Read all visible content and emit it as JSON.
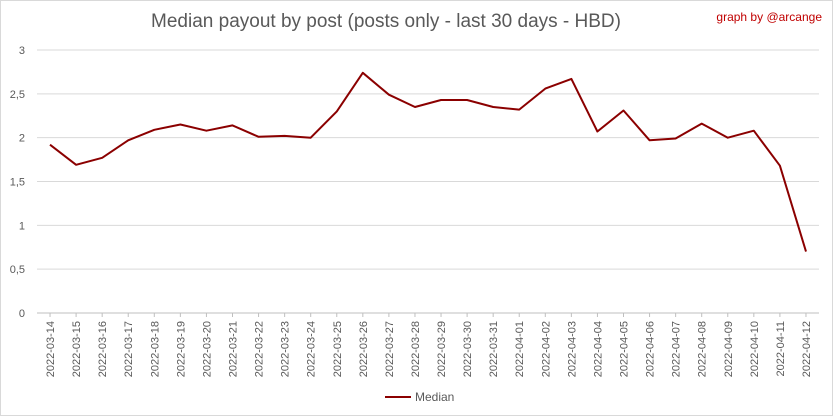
{
  "chart_data": {
    "type": "line",
    "title": "Median payout by post (posts only - last 30 days - HBD)",
    "credit": "graph by @arcange",
    "xlabel": "",
    "ylabel": "",
    "ylim": [
      0,
      3
    ],
    "yticks": [
      "0",
      "0,5",
      "1",
      "1,5",
      "2",
      "2,5",
      "3"
    ],
    "grid": true,
    "legend_position": "bottom",
    "categories": [
      "2022-03-14",
      "2022-03-15",
      "2022-03-16",
      "2022-03-17",
      "2022-03-18",
      "2022-03-19",
      "2022-03-20",
      "2022-03-21",
      "2022-03-22",
      "2022-03-23",
      "2022-03-24",
      "2022-03-25",
      "2022-03-26",
      "2022-03-27",
      "2022-03-28",
      "2022-03-29",
      "2022-03-30",
      "2022-03-31",
      "2022-04-01",
      "2022-04-02",
      "2022-04-03",
      "2022-04-04",
      "2022-04-05",
      "2022-04-06",
      "2022-04-07",
      "2022-04-08",
      "2022-04-09",
      "2022-04-10",
      "2022-04-11",
      "2022-04-12"
    ],
    "series": [
      {
        "name": "Median",
        "color": "#8b0000",
        "values": [
          1.92,
          1.69,
          1.77,
          1.97,
          2.09,
          2.15,
          2.08,
          2.14,
          2.01,
          2.02,
          2.0,
          2.3,
          2.74,
          2.49,
          2.35,
          2.43,
          2.43,
          2.35,
          2.32,
          2.56,
          2.67,
          2.07,
          2.31,
          1.97,
          1.99,
          2.16,
          2.0,
          2.08,
          1.68,
          0.7
        ]
      }
    ]
  }
}
